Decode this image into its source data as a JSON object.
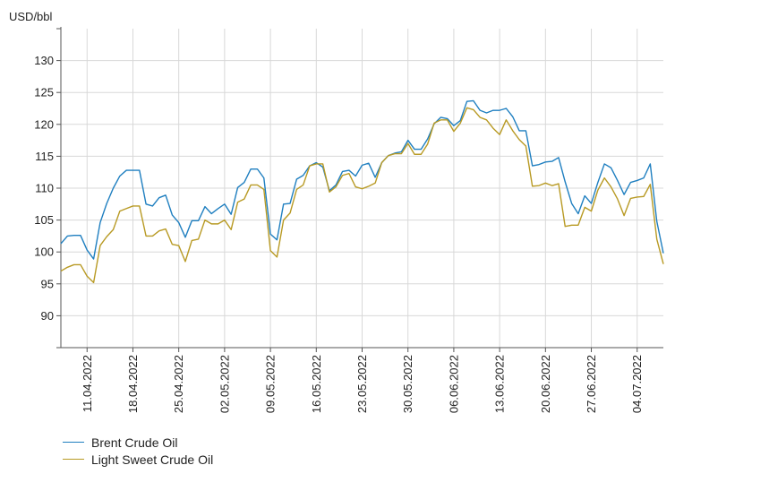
{
  "chart_data": {
    "type": "line",
    "ylabel": "USD/bbl",
    "ylim": [
      85,
      135
    ],
    "yticks": [
      90,
      95,
      100,
      105,
      110,
      115,
      120,
      125,
      130
    ],
    "xrange": [
      "2022-04-07",
      "2022-07-08"
    ],
    "xticks": [
      "11.04.2022",
      "18.04.2022",
      "25.04.2022",
      "02.05.2022",
      "09.05.2022",
      "16.05.2022",
      "23.05.2022",
      "30.05.2022",
      "06.06.2022",
      "13.06.2022",
      "20.06.2022",
      "27.06.2022",
      "04.07.2022"
    ],
    "grid": true,
    "legend_position": "bottom-left",
    "x": [
      "2022-04-07",
      "2022-04-08",
      "2022-04-09",
      "2022-04-10",
      "2022-04-11",
      "2022-04-12",
      "2022-04-13",
      "2022-04-14",
      "2022-04-15",
      "2022-04-16",
      "2022-04-17",
      "2022-04-18",
      "2022-04-19",
      "2022-04-20",
      "2022-04-21",
      "2022-04-22",
      "2022-04-23",
      "2022-04-24",
      "2022-04-25",
      "2022-04-26",
      "2022-04-27",
      "2022-04-28",
      "2022-04-29",
      "2022-04-30",
      "2022-05-01",
      "2022-05-02",
      "2022-05-03",
      "2022-05-04",
      "2022-05-05",
      "2022-05-06",
      "2022-05-07",
      "2022-05-08",
      "2022-05-09",
      "2022-05-10",
      "2022-05-11",
      "2022-05-12",
      "2022-05-13",
      "2022-05-14",
      "2022-05-15",
      "2022-05-16",
      "2022-05-17",
      "2022-05-18",
      "2022-05-19",
      "2022-05-20",
      "2022-05-21",
      "2022-05-22",
      "2022-05-23",
      "2022-05-24",
      "2022-05-25",
      "2022-05-26",
      "2022-05-27",
      "2022-05-28",
      "2022-05-29",
      "2022-05-30",
      "2022-05-31",
      "2022-06-01",
      "2022-06-02",
      "2022-06-03",
      "2022-06-04",
      "2022-06-05",
      "2022-06-06",
      "2022-06-07",
      "2022-06-08",
      "2022-06-09",
      "2022-06-10",
      "2022-06-11",
      "2022-06-12",
      "2022-06-13",
      "2022-06-14",
      "2022-06-15",
      "2022-06-16",
      "2022-06-17",
      "2022-06-18",
      "2022-06-19",
      "2022-06-20",
      "2022-06-21",
      "2022-06-22",
      "2022-06-23",
      "2022-06-24",
      "2022-06-25",
      "2022-06-26",
      "2022-06-27",
      "2022-06-28",
      "2022-06-29",
      "2022-06-30",
      "2022-07-01",
      "2022-07-02",
      "2022-07-03",
      "2022-07-04",
      "2022-07-05",
      "2022-07-06",
      "2022-07-07",
      "2022-07-08"
    ],
    "series": [
      {
        "name": "Brent Crude Oil",
        "color": "#1f7fc0",
        "values": [
          101.3,
          102.5,
          102.6,
          102.6,
          100.3,
          98.9,
          104.6,
          107.6,
          110.0,
          111.9,
          112.8,
          112.8,
          112.8,
          107.5,
          107.2,
          108.5,
          108.9,
          105.8,
          104.6,
          102.3,
          104.9,
          104.9,
          107.1,
          106.0,
          106.8,
          107.5,
          105.9,
          110.1,
          110.9,
          113.0,
          113.0,
          111.6,
          102.8,
          101.9,
          107.5,
          107.6,
          111.4,
          112.0,
          113.5,
          114.0,
          113.3,
          109.6,
          110.5,
          112.6,
          112.8,
          111.9,
          113.6,
          113.9,
          111.7,
          114.0,
          115.1,
          115.5,
          115.7,
          117.5,
          116.1,
          116.1,
          117.7,
          120.1,
          121.1,
          120.9,
          119.8,
          120.6,
          123.6,
          123.7,
          122.2,
          121.8,
          122.2,
          122.2,
          122.5,
          121.2,
          119.0,
          119.0,
          113.5,
          113.7,
          114.1,
          114.2,
          114.8,
          111.0,
          107.6,
          106.0,
          108.8,
          107.6,
          110.9,
          113.8,
          113.2,
          111.2,
          109.0,
          110.9,
          111.2,
          111.6,
          113.8,
          104.8,
          99.8
        ]
      },
      {
        "name": "Light Sweet Crude Oil",
        "color": "#b89a24",
        "values": [
          97.0,
          97.6,
          98.0,
          98.0,
          96.2,
          95.2,
          101.0,
          102.4,
          103.5,
          106.4,
          106.8,
          107.2,
          107.2,
          102.5,
          102.5,
          103.3,
          103.6,
          101.2,
          101.0,
          98.5,
          101.8,
          102.0,
          105.0,
          104.4,
          104.4,
          105.0,
          103.5,
          107.8,
          108.3,
          110.5,
          110.5,
          109.8,
          100.2,
          99.2,
          105.0,
          106.1,
          109.8,
          110.5,
          113.5,
          113.8,
          113.8,
          109.4,
          110.2,
          112.0,
          112.3,
          110.2,
          109.9,
          110.3,
          110.8,
          114.0,
          115.1,
          115.4,
          115.4,
          117.0,
          115.3,
          115.3,
          116.9,
          120.2,
          120.7,
          120.7,
          118.9,
          120.2,
          122.6,
          122.3,
          121.1,
          120.7,
          119.4,
          118.4,
          120.7,
          119.0,
          117.6,
          116.6,
          110.3,
          110.4,
          110.8,
          110.4,
          110.7,
          104.0,
          104.2,
          104.2,
          107.0,
          106.4,
          109.7,
          111.6,
          110.2,
          108.3,
          105.7,
          108.4,
          108.6,
          108.7,
          110.6,
          102.0,
          98.1
        ]
      }
    ]
  }
}
